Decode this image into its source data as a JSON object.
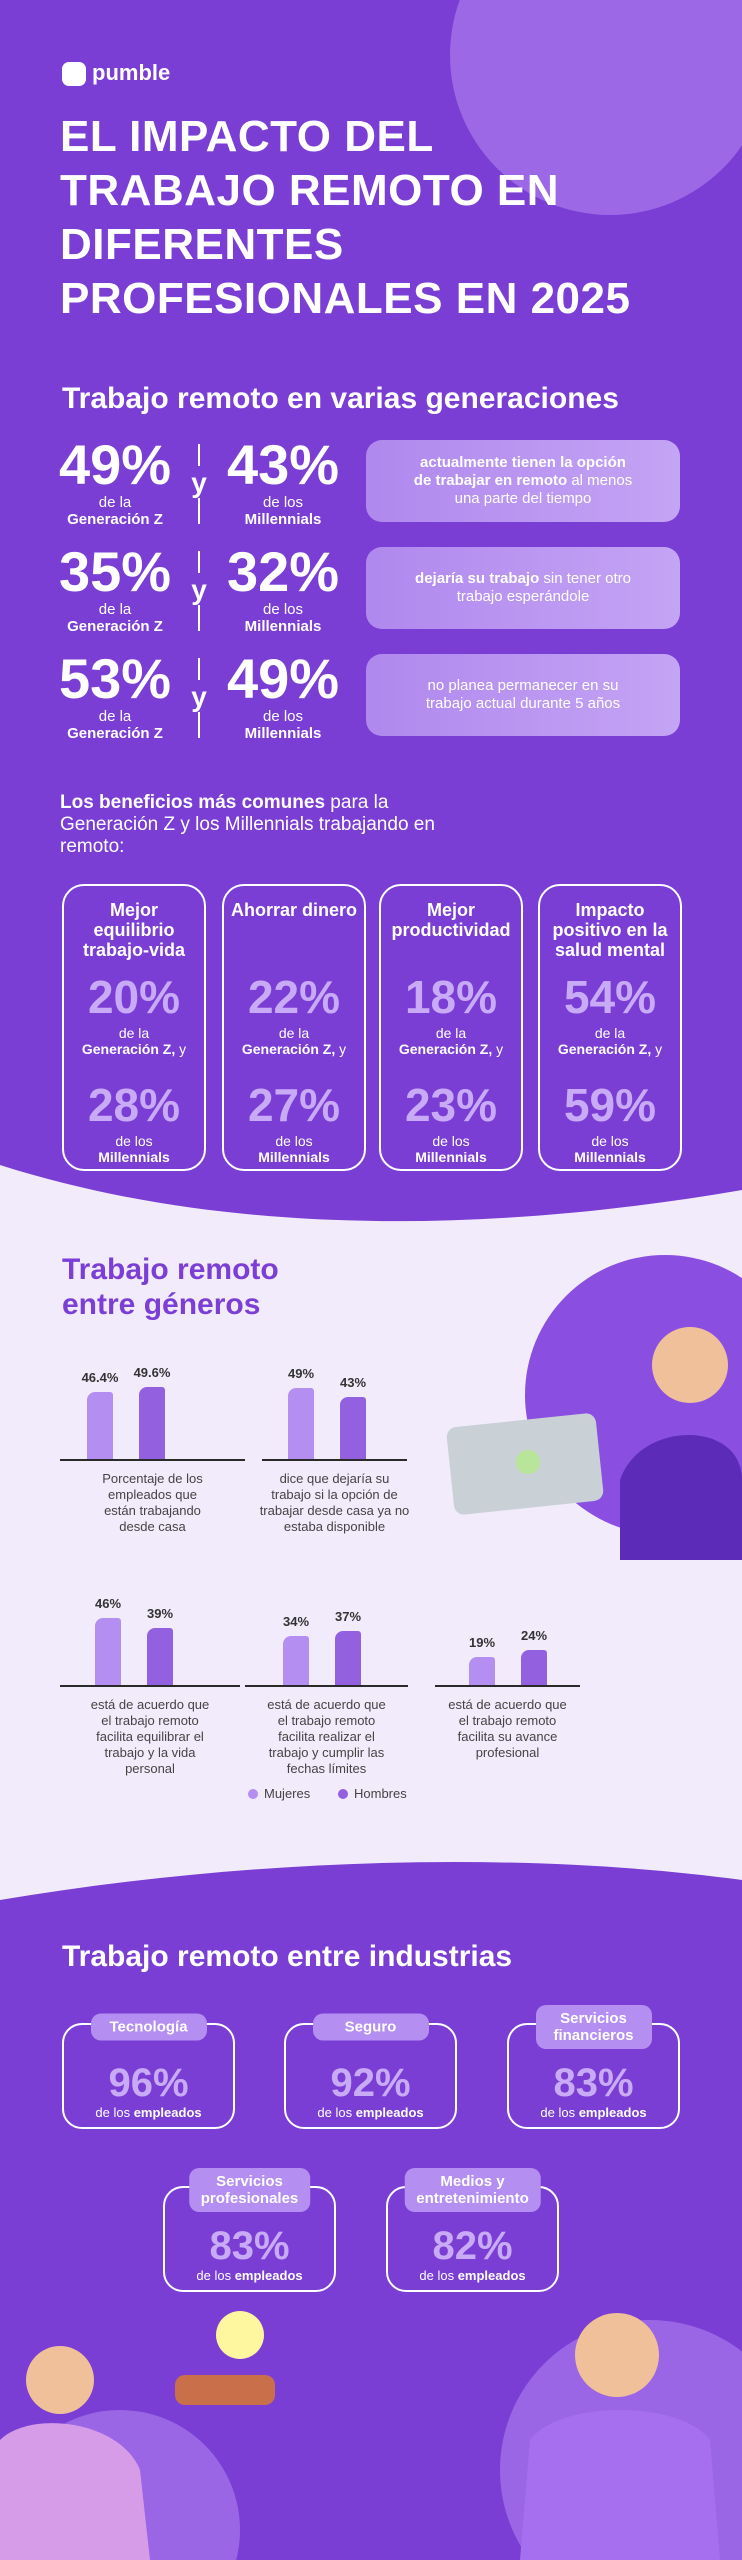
{
  "header": {
    "brand": "pumble",
    "title_lines": [
      "EL IMPACTO DEL",
      "TRABAJO REMOTO EN",
      "DIFERENTES",
      "PROFESIONALES EN 2025"
    ]
  },
  "generations": {
    "title": "Trabajo remoto en varias generaciones",
    "rows": [
      {
        "gen_z": "49%",
        "gen_z_pre": "de la",
        "gen_z_label": "Generación Z",
        "joiner": "y",
        "millennials": "43%",
        "millennials_pre": "de los",
        "millennials_label": "Millennials",
        "note": [
          {
            "text": "actualmente tienen la opción de trabajar en remoto",
            "bold": true
          },
          {
            "text": " al menos una parte del tiempo",
            "bold": false
          }
        ]
      },
      {
        "gen_z": "35%",
        "gen_z_pre": "de la",
        "gen_z_label": "Generación Z",
        "joiner": "y",
        "millennials": "32%",
        "millennials_pre": "de los",
        "millennials_label": "Millennials",
        "note": [
          {
            "text": "dejaría su trabajo",
            "bold": true
          },
          {
            "text": " sin tener otro trabajo esperándole",
            "bold": false
          }
        ]
      },
      {
        "gen_z": "53%",
        "gen_z_pre": "de la",
        "gen_z_label": "Generación Z",
        "joiner": "y",
        "millennials": "49%",
        "millennials_pre": "de los",
        "millennials_label": "Millennials",
        "note": [
          {
            "text": "no planea permanecer en su trabajo actual durante 5 años",
            "bold": false
          }
        ]
      }
    ]
  },
  "benefits": {
    "intro": [
      {
        "text": "Los beneficios más comunes",
        "bold": true
      },
      {
        "text": " para la Generación Z y los Millennials trabajando en remoto:",
        "bold": false
      }
    ],
    "cards": [
      {
        "title": "Mejor equilibrio trabajo-vida",
        "gen_z": "20%",
        "gen_z_pre": "de la",
        "gen_z_label": "Generación Z,",
        "joiner": "y",
        "millennials": "28%",
        "millennials_pre": "de los",
        "millennials_label": "Millennials"
      },
      {
        "title": "Ahorrar dinero",
        "gen_z": "22%",
        "gen_z_pre": "de la",
        "gen_z_label": "Generación Z,",
        "joiner": "y",
        "millennials": "27%",
        "millennials_pre": "de los",
        "millennials_label": "Millennials"
      },
      {
        "title": "Mejor productividad",
        "gen_z": "18%",
        "gen_z_pre": "de la",
        "gen_z_label": "Generación Z,",
        "joiner": "y",
        "millennials": "23%",
        "millennials_pre": "de los",
        "millennials_label": "Millennials"
      },
      {
        "title": "Impacto positivo en la salud mental",
        "gen_z": "54%",
        "gen_z_pre": "de la",
        "gen_z_label": "Generación Z,",
        "joiner": "y",
        "millennials": "59%",
        "millennials_pre": "de los",
        "millennials_label": "Millennials"
      }
    ]
  },
  "genders": {
    "title_lines": [
      "Trabajo remoto",
      "entre géneros"
    ],
    "legend": [
      {
        "name": "Mujeres",
        "color": "#b48ef0"
      },
      {
        "name": "Hombres",
        "color": "#9360e0"
      }
    ],
    "charts": [
      {
        "values": [
          46.4,
          49.6
        ],
        "value_labels": [
          "46.4%",
          "49.6%"
        ],
        "caption_lines": [
          "Porcentaje de los",
          "empleados que",
          "están trabajando",
          "desde casa"
        ]
      },
      {
        "values": [
          49,
          43
        ],
        "value_labels": [
          "49%",
          "43%"
        ],
        "caption_lines": [
          "dice que dejaría su",
          "trabajo si la opción de",
          "trabajar desde casa ya no",
          "estaba disponible"
        ]
      },
      {
        "values": [
          46,
          39
        ],
        "value_labels": [
          "46%",
          "39%"
        ],
        "caption_lines": [
          "está de acuerdo que",
          "el trabajo remoto",
          "facilita equilibrar el",
          "trabajo y la vida",
          "personal"
        ]
      },
      {
        "values": [
          34,
          37
        ],
        "value_labels": [
          "34%",
          "37%"
        ],
        "caption_lines": [
          "está de acuerdo que",
          "el trabajo remoto",
          "facilita realizar el",
          "trabajo y cumplir las",
          "fechas límites"
        ]
      },
      {
        "values": [
          19,
          24
        ],
        "value_labels": [
          "19%",
          "24%"
        ],
        "caption_lines": [
          "está de acuerdo que",
          "el trabajo remoto",
          "facilita su avance",
          "profesional"
        ]
      }
    ]
  },
  "industries": {
    "title": "Trabajo remoto entre industrias",
    "items": [
      {
        "name_lines": [
          "Tecnología"
        ],
        "value": "96%",
        "pre": "de los",
        "label": "empleados"
      },
      {
        "name_lines": [
          "Seguro"
        ],
        "value": "92%",
        "pre": "de los",
        "label": "empleados"
      },
      {
        "name_lines": [
          "Servicios",
          "financieros"
        ],
        "value": "83%",
        "pre": "de los",
        "label": "empleados"
      },
      {
        "name_lines": [
          "Servicios",
          "profesionales"
        ],
        "value": "83%",
        "pre": "de los",
        "label": "empleados"
      },
      {
        "name_lines": [
          "Medios y",
          "entretenimiento"
        ],
        "value": "82%",
        "pre": "de los",
        "label": "empleados"
      }
    ]
  }
}
